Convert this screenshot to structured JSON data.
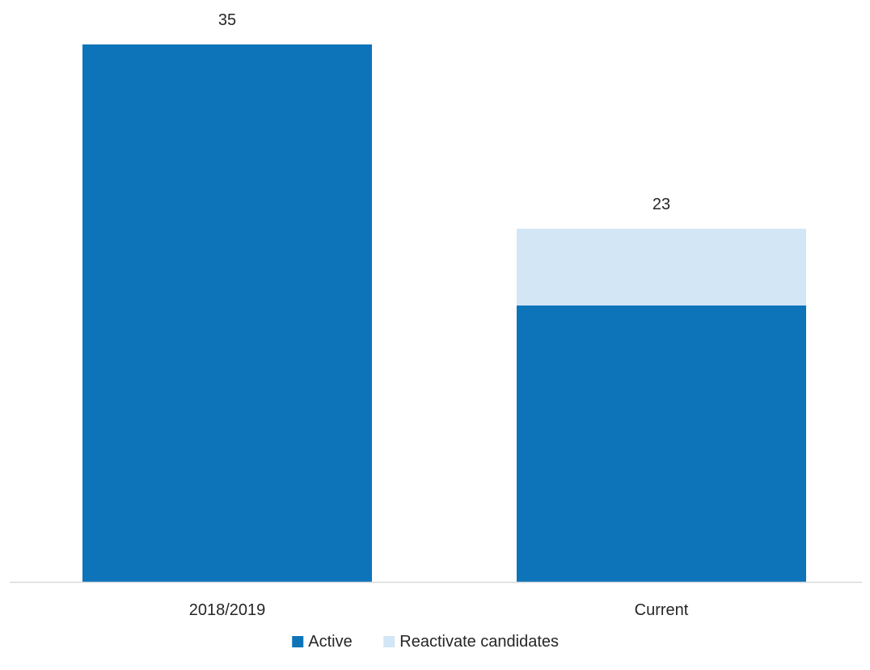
{
  "chart_data": {
    "type": "bar",
    "stacked": true,
    "categories": [
      "2018/2019",
      "Current"
    ],
    "series": [
      {
        "name": "Active",
        "values": [
          35,
          18
        ],
        "color": "#0E74BA"
      },
      {
        "name": "Reactivate candidates",
        "values": [
          0,
          5
        ],
        "color": "#D2E6F5"
      }
    ],
    "totals": [
      "35",
      "23"
    ],
    "title": "",
    "xlabel": "",
    "ylabel": "",
    "ylim": [
      0,
      35
    ],
    "grid": false,
    "legend_position": "bottom-center",
    "axis_color": "#D9D9D9",
    "text_color": "#262626"
  }
}
